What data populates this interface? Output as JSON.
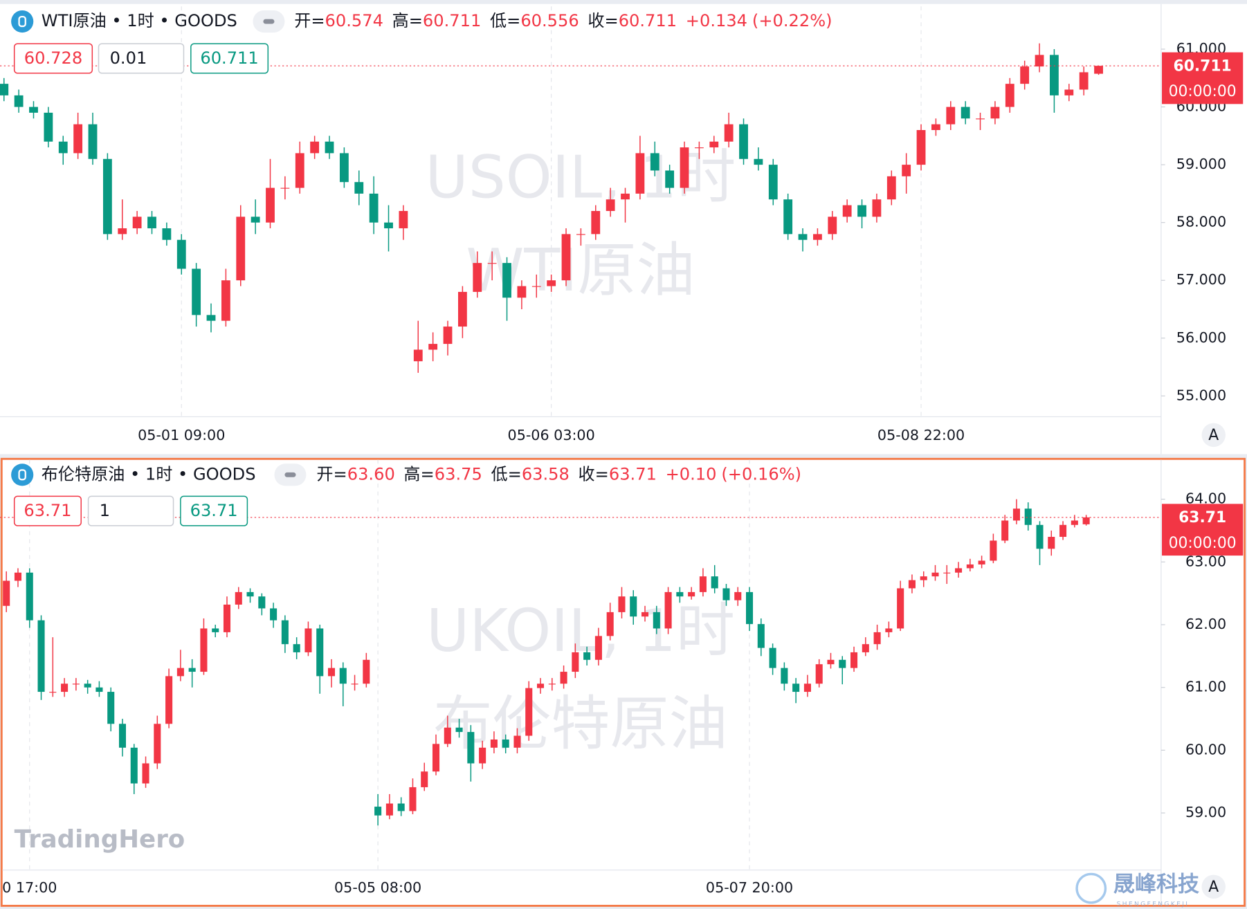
{
  "logo": "TradingHero",
  "brand": "晟峰科技",
  "brand_sub": "SHENGFENGKEJI",
  "chart_data": [
    {
      "type": "candlestick",
      "title": "WTI原油 • 1时 • GOODS",
      "watermark": [
        "USOIL, 1时",
        "WTI原油"
      ],
      "legend": [
        {
          "label": "开=",
          "value": "60.574"
        },
        {
          "label": "高=",
          "value": "60.711"
        },
        {
          "label": "低=",
          "value": "60.556"
        },
        {
          "label": "收=",
          "value": "60.711"
        }
      ],
      "change": "+0.134",
      "change_pct": "(+0.22%)",
      "bid": "60.728",
      "qty": "0.01",
      "ask": "60.711",
      "last_price": {
        "value": 60.711,
        "label": "60.711"
      },
      "countdown": "00:00:00",
      "auto_button": "A",
      "up_color": "#f23645",
      "down_color": "#089981",
      "ylim": [
        54.64,
        61.74
      ],
      "yticks": [
        {
          "value": 55,
          "label": "55.000"
        },
        {
          "value": 56,
          "label": "56.000"
        },
        {
          "value": 57,
          "label": "57.000"
        },
        {
          "value": 58,
          "label": "58.000"
        },
        {
          "value": 59,
          "label": "59.000"
        },
        {
          "value": 60,
          "label": "60.000"
        },
        {
          "value": 61,
          "label": "61.000"
        }
      ],
      "xticks": [
        {
          "value": 12,
          "label": "05-01 09:00"
        },
        {
          "value": 37,
          "label": "05-06 03:00"
        },
        {
          "value": 62,
          "label": "05-08 22:00"
        }
      ],
      "ohlc": [
        [
          60.4,
          60.5,
          60.1,
          60.2
        ],
        [
          60.2,
          60.3,
          59.9,
          60.0
        ],
        [
          60.0,
          60.1,
          59.8,
          59.9
        ],
        [
          59.9,
          60.0,
          59.3,
          59.4
        ],
        [
          59.4,
          59.5,
          59.0,
          59.2
        ],
        [
          59.2,
          59.9,
          59.1,
          59.7
        ],
        [
          59.7,
          59.9,
          59.0,
          59.1
        ],
        [
          59.1,
          59.2,
          57.7,
          57.8
        ],
        [
          57.8,
          58.4,
          57.7,
          57.9
        ],
        [
          57.9,
          58.2,
          57.8,
          58.1
        ],
        [
          58.1,
          58.2,
          57.8,
          57.9
        ],
        [
          57.9,
          58.0,
          57.6,
          57.7
        ],
        [
          57.7,
          57.8,
          57.1,
          57.2
        ],
        [
          57.2,
          57.3,
          56.2,
          56.4
        ],
        [
          56.4,
          56.6,
          56.1,
          56.3
        ],
        [
          56.3,
          57.2,
          56.2,
          57.0
        ],
        [
          57.0,
          58.3,
          56.9,
          58.1
        ],
        [
          58.1,
          58.4,
          57.8,
          58.0
        ],
        [
          58.0,
          59.1,
          57.9,
          58.6
        ],
        [
          58.6,
          58.8,
          58.4,
          58.6
        ],
        [
          58.6,
          59.4,
          58.5,
          59.2
        ],
        [
          59.2,
          59.5,
          59.1,
          59.4
        ],
        [
          59.4,
          59.5,
          59.1,
          59.2
        ],
        [
          59.2,
          59.3,
          58.6,
          58.7
        ],
        [
          58.7,
          58.9,
          58.3,
          58.5
        ],
        [
          58.5,
          58.8,
          57.8,
          58.0
        ],
        [
          58.0,
          58.3,
          57.5,
          57.9
        ],
        [
          57.9,
          58.3,
          57.7,
          58.2
        ],
        [
          55.6,
          56.3,
          55.4,
          55.8
        ],
        [
          55.8,
          56.1,
          55.6,
          55.9
        ],
        [
          55.9,
          56.3,
          55.7,
          56.2
        ],
        [
          56.2,
          56.9,
          56.0,
          56.8
        ],
        [
          56.8,
          57.5,
          56.7,
          57.3
        ],
        [
          57.3,
          57.5,
          57.0,
          57.3
        ],
        [
          57.3,
          57.4,
          56.3,
          56.7
        ],
        [
          56.7,
          57.0,
          56.5,
          56.9
        ],
        [
          56.9,
          57.1,
          56.7,
          56.9
        ],
        [
          56.9,
          57.1,
          56.8,
          57.0
        ],
        [
          57.0,
          57.9,
          56.9,
          57.8
        ],
        [
          57.8,
          57.9,
          57.6,
          57.8
        ],
        [
          57.8,
          58.3,
          57.7,
          58.2
        ],
        [
          58.2,
          58.6,
          58.1,
          58.4
        ],
        [
          58.4,
          58.6,
          58.0,
          58.5
        ],
        [
          58.5,
          59.5,
          58.4,
          59.2
        ],
        [
          59.2,
          59.4,
          58.8,
          58.9
        ],
        [
          58.9,
          59.0,
          58.5,
          58.6
        ],
        [
          58.6,
          59.4,
          58.5,
          59.3
        ],
        [
          59.3,
          59.4,
          59.1,
          59.3
        ],
        [
          59.3,
          59.5,
          59.2,
          59.4
        ],
        [
          59.4,
          59.9,
          59.3,
          59.7
        ],
        [
          59.7,
          59.8,
          59.0,
          59.1
        ],
        [
          59.1,
          59.3,
          58.9,
          59.0
        ],
        [
          59.0,
          59.1,
          58.3,
          58.4
        ],
        [
          58.4,
          58.5,
          57.7,
          57.8
        ],
        [
          57.8,
          57.9,
          57.5,
          57.7
        ],
        [
          57.7,
          57.9,
          57.6,
          57.8
        ],
        [
          57.8,
          58.2,
          57.7,
          58.1
        ],
        [
          58.1,
          58.4,
          58.0,
          58.3
        ],
        [
          58.3,
          58.4,
          57.9,
          58.1
        ],
        [
          58.1,
          58.5,
          58.0,
          58.4
        ],
        [
          58.4,
          58.9,
          58.3,
          58.8
        ],
        [
          58.8,
          59.2,
          58.5,
          59.0
        ],
        [
          59.0,
          59.7,
          58.9,
          59.6
        ],
        [
          59.6,
          59.8,
          59.5,
          59.7
        ],
        [
          59.7,
          60.1,
          59.6,
          60.0
        ],
        [
          60.0,
          60.1,
          59.7,
          59.8
        ],
        [
          59.8,
          59.9,
          59.6,
          59.8
        ],
        [
          59.8,
          60.1,
          59.7,
          60.0
        ],
        [
          60.0,
          60.5,
          59.9,
          60.4
        ],
        [
          60.4,
          60.8,
          60.3,
          60.7
        ],
        [
          60.7,
          61.1,
          60.6,
          60.9
        ],
        [
          60.9,
          61.0,
          59.9,
          60.2
        ],
        [
          60.2,
          60.4,
          60.1,
          60.3
        ],
        [
          60.3,
          60.7,
          60.2,
          60.6
        ],
        [
          60.574,
          60.711,
          60.556,
          60.711
        ]
      ]
    },
    {
      "type": "candlestick",
      "title": "布伦特原油 • 1时 • GOODS",
      "watermark": [
        "UKOIL, 1时",
        "布伦特原油"
      ],
      "legend": [
        {
          "label": "开=",
          "value": "63.60"
        },
        {
          "label": "高=",
          "value": "63.75"
        },
        {
          "label": "低=",
          "value": "63.58"
        },
        {
          "label": "收=",
          "value": "63.71"
        }
      ],
      "change": "+0.10",
      "change_pct": "(+0.16%)",
      "bid": "63.71",
      "qty": "1",
      "ask": "63.71",
      "last_price": {
        "value": 63.71,
        "label": "63.71"
      },
      "countdown": "00:00:00",
      "auto_button": "A",
      "up_color": "#f23645",
      "down_color": "#089981",
      "ylim": [
        58.09,
        64.63
      ],
      "yticks": [
        {
          "value": 59,
          "label": "59.00"
        },
        {
          "value": 60,
          "label": "60.00"
        },
        {
          "value": 61,
          "label": "61.00"
        },
        {
          "value": 62,
          "label": "62.00"
        },
        {
          "value": 63,
          "label": "63.00"
        },
        {
          "value": 64,
          "label": "64.00"
        }
      ],
      "xticks": [
        {
          "value": 2,
          "label": "0 17:00"
        },
        {
          "value": 32,
          "label": "05-05 08:00"
        },
        {
          "value": 64,
          "label": "05-07 20:00"
        }
      ],
      "ohlc": [
        [
          62.3,
          62.85,
          62.2,
          62.7
        ],
        [
          62.7,
          62.9,
          62.6,
          62.83
        ],
        [
          62.83,
          62.9,
          61.95,
          62.07
        ],
        [
          62.07,
          62.15,
          60.8,
          60.93
        ],
        [
          60.93,
          61.8,
          60.85,
          60.93
        ],
        [
          60.93,
          61.15,
          60.85,
          61.06
        ],
        [
          61.06,
          61.15,
          60.95,
          61.06
        ],
        [
          61.06,
          61.12,
          60.9,
          61.0
        ],
        [
          61.0,
          61.1,
          60.85,
          60.93
        ],
        [
          60.93,
          61.0,
          60.3,
          60.42
        ],
        [
          60.42,
          60.5,
          59.9,
          60.04
        ],
        [
          60.04,
          60.1,
          59.3,
          59.47
        ],
        [
          59.47,
          59.9,
          59.4,
          59.79
        ],
        [
          59.79,
          60.55,
          59.7,
          60.42
        ],
        [
          60.42,
          61.3,
          60.35,
          61.18
        ],
        [
          61.18,
          61.6,
          61.1,
          61.31
        ],
        [
          61.31,
          61.45,
          61.0,
          61.25
        ],
        [
          61.25,
          62.1,
          61.2,
          61.94
        ],
        [
          61.94,
          62.0,
          61.8,
          61.88
        ],
        [
          61.88,
          62.45,
          61.8,
          62.32
        ],
        [
          62.32,
          62.6,
          62.25,
          62.52
        ],
        [
          62.52,
          62.58,
          62.35,
          62.45
        ],
        [
          62.45,
          62.5,
          62.15,
          62.26
        ],
        [
          62.26,
          62.35,
          61.95,
          62.07
        ],
        [
          62.07,
          62.15,
          61.55,
          61.69
        ],
        [
          61.69,
          61.8,
          61.45,
          61.56
        ],
        [
          61.56,
          62.05,
          61.5,
          61.94
        ],
        [
          61.94,
          62.0,
          60.9,
          61.18
        ],
        [
          61.18,
          61.45,
          61.0,
          61.31
        ],
        [
          61.31,
          61.4,
          60.7,
          61.06
        ],
        [
          61.06,
          61.2,
          60.95,
          61.06
        ],
        [
          61.06,
          61.55,
          61.0,
          61.44
        ],
        [
          59.1,
          59.3,
          58.8,
          58.96
        ],
        [
          58.96,
          59.3,
          58.9,
          59.15
        ],
        [
          59.15,
          59.25,
          58.95,
          59.03
        ],
        [
          59.03,
          59.55,
          58.98,
          59.41
        ],
        [
          59.41,
          59.8,
          59.35,
          59.66
        ],
        [
          59.66,
          60.25,
          59.6,
          60.1
        ],
        [
          60.1,
          60.55,
          60.05,
          60.36
        ],
        [
          60.36,
          60.5,
          60.2,
          60.29
        ],
        [
          60.29,
          60.4,
          59.5,
          59.79
        ],
        [
          59.79,
          60.15,
          59.7,
          60.04
        ],
        [
          60.04,
          60.3,
          59.95,
          60.17
        ],
        [
          60.17,
          60.25,
          59.95,
          60.04
        ],
        [
          60.04,
          60.35,
          59.95,
          60.23
        ],
        [
          60.23,
          61.1,
          60.15,
          60.99
        ],
        [
          60.99,
          61.15,
          60.9,
          61.06
        ],
        [
          61.06,
          61.15,
          60.95,
          61.06
        ],
        [
          61.06,
          61.35,
          60.98,
          61.25
        ],
        [
          61.25,
          61.7,
          61.15,
          61.56
        ],
        [
          61.56,
          61.65,
          61.35,
          61.44
        ],
        [
          61.44,
          61.95,
          61.35,
          61.82
        ],
        [
          61.82,
          62.35,
          61.75,
          62.2
        ],
        [
          62.2,
          62.6,
          62.1,
          62.45
        ],
        [
          62.45,
          62.55,
          62.0,
          62.13
        ],
        [
          62.13,
          62.3,
          62.05,
          62.2
        ],
        [
          62.2,
          62.3,
          61.85,
          61.94
        ],
        [
          61.94,
          62.6,
          61.85,
          62.52
        ],
        [
          62.52,
          62.6,
          62.35,
          62.45
        ],
        [
          62.45,
          62.6,
          62.4,
          62.52
        ],
        [
          62.52,
          62.9,
          62.45,
          62.77
        ],
        [
          62.77,
          62.95,
          62.5,
          62.58
        ],
        [
          62.58,
          62.65,
          62.3,
          62.39
        ],
        [
          62.39,
          62.6,
          62.3,
          62.52
        ],
        [
          62.52,
          62.6,
          61.9,
          62.01
        ],
        [
          62.01,
          62.1,
          61.5,
          61.63
        ],
        [
          61.63,
          61.7,
          61.2,
          61.31
        ],
        [
          61.31,
          61.4,
          60.95,
          61.06
        ],
        [
          61.06,
          61.15,
          60.75,
          60.93
        ],
        [
          60.93,
          61.2,
          60.85,
          61.06
        ],
        [
          61.06,
          61.45,
          61.0,
          61.37
        ],
        [
          61.37,
          61.55,
          61.3,
          61.44
        ],
        [
          61.44,
          61.5,
          61.05,
          61.31
        ],
        [
          61.31,
          61.65,
          61.25,
          61.56
        ],
        [
          61.56,
          61.8,
          61.5,
          61.69
        ],
        [
          61.69,
          62.0,
          61.6,
          61.88
        ],
        [
          61.88,
          62.05,
          61.8,
          61.94
        ],
        [
          61.94,
          62.7,
          61.9,
          62.58
        ],
        [
          62.58,
          62.8,
          62.5,
          62.71
        ],
        [
          62.71,
          62.85,
          62.6,
          62.77
        ],
        [
          62.77,
          62.95,
          62.7,
          62.83
        ],
        [
          62.83,
          62.95,
          62.65,
          62.83
        ],
        [
          62.83,
          63.0,
          62.75,
          62.9
        ],
        [
          62.9,
          63.05,
          62.85,
          62.96
        ],
        [
          62.96,
          63.1,
          62.9,
          63.02
        ],
        [
          63.02,
          63.45,
          62.98,
          63.34
        ],
        [
          63.34,
          63.75,
          63.3,
          63.66
        ],
        [
          63.66,
          64.0,
          63.6,
          63.85
        ],
        [
          63.85,
          63.95,
          63.5,
          63.59
        ],
        [
          63.59,
          63.65,
          62.95,
          63.21
        ],
        [
          63.21,
          63.5,
          63.1,
          63.4
        ],
        [
          63.4,
          63.65,
          63.35,
          63.59
        ],
        [
          63.59,
          63.75,
          63.55,
          63.66
        ],
        [
          63.6,
          63.75,
          63.58,
          63.71
        ]
      ]
    }
  ]
}
